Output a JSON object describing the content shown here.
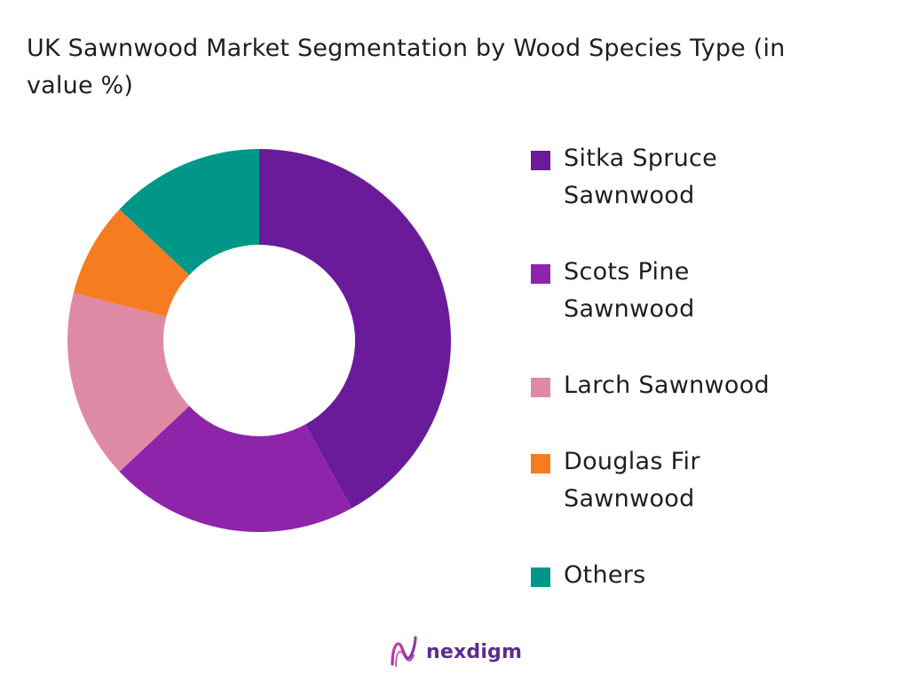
{
  "chart_data": {
    "type": "pie",
    "variant": "donut",
    "title": "UK Sawnwood Market Segmentation by Wood Species Type (in value %)",
    "categories": [
      "Sitka Spruce Sawnwood",
      "Scots Pine Sawnwood",
      "Larch Sawnwood",
      "Douglas Fir Sawnwood",
      "Others"
    ],
    "values": [
      42,
      21,
      16,
      8,
      13
    ],
    "colors": [
      "#6a1b9a",
      "#8e24aa",
      "#df8aa4",
      "#f57c21",
      "#009688"
    ],
    "legend_position": "right"
  },
  "legend_lines": [
    [
      "Sitka Spruce",
      "Sawnwood"
    ],
    [
      "Scots Pine",
      "Sawnwood"
    ],
    [
      "Larch Sawnwood"
    ],
    [
      "Douglas Fir",
      "Sawnwood"
    ],
    [
      "Others"
    ]
  ],
  "brand": {
    "name": "nexdigm",
    "icon": "nexdigm-logo-icon",
    "color": "#5b2d8e"
  }
}
